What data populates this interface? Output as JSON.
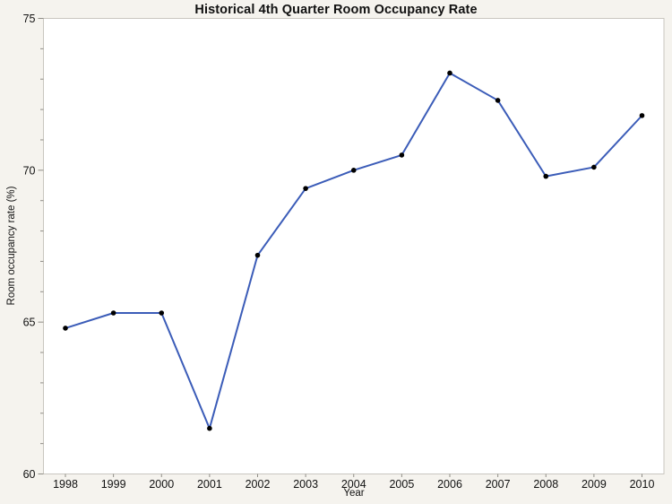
{
  "chart_data": {
    "type": "line",
    "title": "Historical 4th Quarter Room Occupancy Rate",
    "xlabel": "Year",
    "ylabel": "Room occupancy rate (%)",
    "x": [
      1998,
      1999,
      2000,
      2001,
      2002,
      2003,
      2004,
      2005,
      2006,
      2007,
      2008,
      2009,
      2010
    ],
    "values": [
      64.8,
      65.3,
      65.3,
      61.5,
      67.2,
      69.4,
      70.0,
      70.5,
      73.2,
      72.3,
      69.8,
      70.1,
      71.8
    ],
    "ylim": [
      60,
      75
    ],
    "ytick_major": [
      60,
      65,
      70,
      75
    ],
    "ytick_minor_step": 1,
    "grid": false,
    "legend_position": "none",
    "marker": "filled-circle",
    "colors": {
      "line": "#3b5cb8",
      "marker": "#000000",
      "background": "#f5f3ee",
      "plot_background": "#ffffff",
      "frame": "#c9c6bf",
      "tick": "#8f8d87",
      "text": "#111111"
    }
  }
}
